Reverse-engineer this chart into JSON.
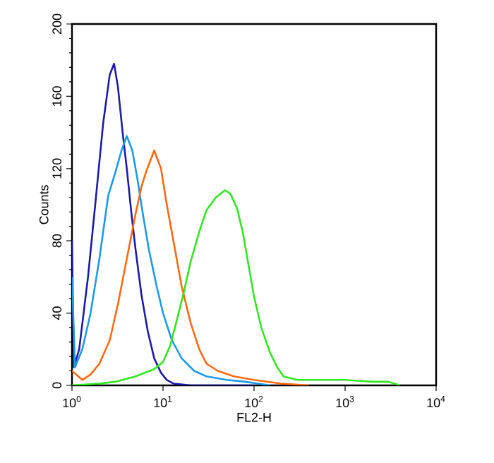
{
  "chart_data": {
    "type": "line",
    "xlabel": "FL2-H",
    "ylabel": "Counts",
    "log": "x",
    "grid": false,
    "marker": "none",
    "line_style": "solid",
    "xlim": [
      1,
      10000
    ],
    "ylim": [
      0,
      200
    ],
    "xticks": [
      {
        "value": 1,
        "label": "10$^{0}$"
      },
      {
        "value": 10,
        "label": "10$^{1}$"
      },
      {
        "value": 100,
        "label": "10$^{2}$"
      },
      {
        "value": 1000,
        "label": "10$^{3}$"
      },
      {
        "value": 10000,
        "label": "10$^{4}$"
      }
    ],
    "yticks": [
      0,
      40,
      80,
      120,
      160,
      200
    ],
    "series": [
      {
        "color": "#1c1ca8",
        "x": [
          1.0,
          1.05,
          1.2,
          1.5,
          1.8,
          2.2,
          2.6,
          2.9,
          3.2,
          3.6,
          4.0,
          4.5,
          5.0,
          5.8,
          6.8,
          8,
          9.5,
          11,
          13,
          20,
          100
        ],
        "values": [
          80,
          10,
          20,
          60,
          100,
          145,
          172,
          178,
          165,
          140,
          120,
          95,
          75,
          50,
          30,
          15,
          7,
          3,
          1,
          0,
          0
        ]
      },
      {
        "color": "#1e9ae8",
        "x": [
          1.0,
          1.08,
          1.3,
          1.6,
          2.0,
          2.5,
          3.0,
          3.5,
          4.0,
          4.6,
          5.2,
          6,
          7,
          8.5,
          10,
          12.5,
          16,
          22,
          30,
          50,
          80,
          150
        ],
        "values": [
          60,
          10,
          20,
          40,
          70,
          105,
          118,
          130,
          138,
          130,
          115,
          95,
          75,
          55,
          40,
          25,
          15,
          8,
          5,
          3,
          2,
          0
        ]
      },
      {
        "color": "#ff6a13",
        "x": [
          1.0,
          1.3,
          1.6,
          2.0,
          2.6,
          3.2,
          4,
          5,
          5.8,
          6.5,
          8,
          9.5,
          11,
          13,
          16,
          20,
          25,
          30,
          40,
          60,
          100,
          200,
          400
        ],
        "values": [
          8,
          3,
          6,
          12,
          25,
          45,
          70,
          95,
          110,
          118,
          130,
          120,
          100,
          80,
          55,
          35,
          20,
          12,
          8,
          5,
          3,
          1,
          0
        ]
      },
      {
        "color": "#33e622",
        "x": [
          1,
          2,
          3,
          5,
          8,
          10,
          12,
          14,
          17,
          20,
          25,
          30,
          38,
          48,
          55,
          65,
          75,
          88,
          100,
          120,
          150,
          180,
          210,
          300,
          500,
          1000,
          2000,
          3000,
          4000
        ],
        "values": [
          0,
          1,
          2,
          5,
          9,
          13,
          22,
          35,
          52,
          68,
          85,
          97,
          104,
          108,
          106,
          98,
          85,
          65,
          49,
          32,
          18,
          10,
          5,
          3,
          3,
          3,
          2,
          2,
          0
        ]
      }
    ]
  }
}
